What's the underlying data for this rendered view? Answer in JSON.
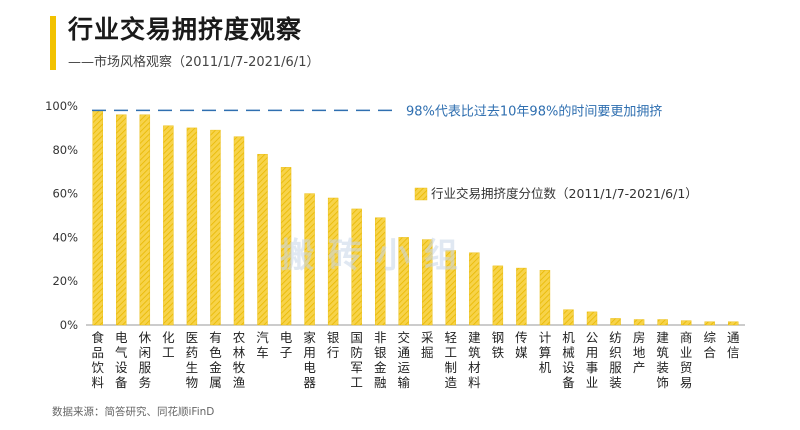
{
  "header": {
    "title": "行业交易拥挤度观察",
    "subtitle": "——市场风格观察（2011/1/7-2021/6/1）"
  },
  "source": "数据来源：简答研究、同花顺iFinD",
  "watermark": "搬砖小组",
  "colors": {
    "accent": "#f2c200",
    "bar": "#f7d34a",
    "bar_hatch": "#e8b800",
    "reference_line": "#2f6fb0",
    "annotation": "#2f6fb0"
  },
  "chart_data": {
    "type": "bar",
    "categories": [
      "食品饮料",
      "电气设备",
      "休闲服务",
      "化工",
      "医药生物",
      "有色金属",
      "农林牧渔",
      "汽车",
      "电子",
      "家用电器",
      "银行",
      "国防军工",
      "非银金融",
      "交通运输",
      "采掘",
      "轻工制造",
      "建筑材料",
      "钢铁",
      "传媒",
      "计算机",
      "机械设备",
      "公用事业",
      "纺织服装",
      "房地产",
      "建筑装饰",
      "商业贸易",
      "综合",
      "通信"
    ],
    "series": [
      {
        "name": "行业交易拥挤度分位数（2011/1/7-2021/6/1）",
        "values": [
          98,
          96,
          96,
          91,
          90,
          89,
          86,
          78,
          72,
          60,
          58,
          53,
          49,
          40,
          39,
          34,
          33,
          27,
          26,
          25,
          7,
          6,
          3,
          2.5,
          2.5,
          2,
          1.5,
          1.5
        ]
      }
    ],
    "ylim": [
      0,
      100
    ],
    "yticks": [
      "0%",
      "20%",
      "40%",
      "60%",
      "80%",
      "100%"
    ],
    "reference_line": {
      "value": 98,
      "label": "98%代表比过去10年98%的时间要更加拥挤"
    },
    "legend_position": "right-middle",
    "grid": false
  }
}
